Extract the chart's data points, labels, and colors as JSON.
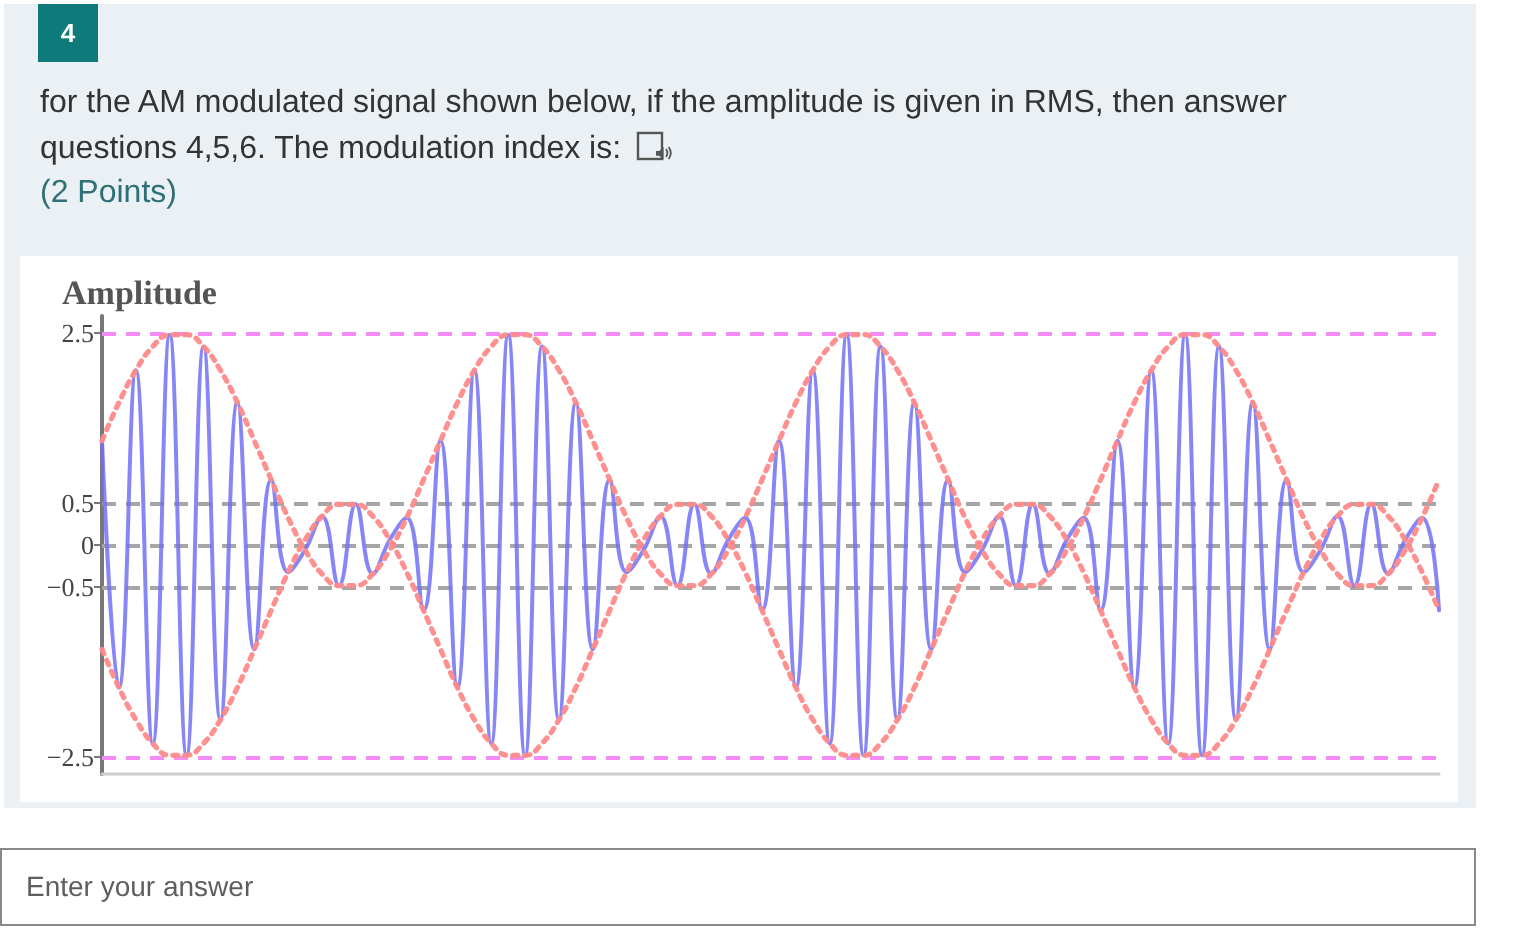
{
  "chart_data": {
    "type": "line",
    "title": "for the AM modulated signal shown below, if the amplitude is given in RMS, then answer questions 4,5,6. The modulation index is:",
    "subtitle": "(2 Points)",
    "ylabel": "Amplitude",
    "annotations": [
      "4",
      "Enter your answer"
    ],
    "categories": [
      null,
      null,
      null,
      null,
      null,
      null,
      null,
      null,
      null,
      null,
      null,
      null,
      null,
      null,
      null,
      null,
      null,
      null,
      null,
      null,
      null,
      null,
      null,
      null,
      null,
      null,
      null,
      null,
      null,
      null,
      null,
      null,
      null,
      null,
      null,
      null,
      null,
      null,
      null,
      null,
      null,
      null,
      null,
      null,
      null,
      null,
      null,
      null,
      null,
      null,
      null,
      null,
      null,
      null,
      null,
      null,
      null,
      null,
      null,
      null,
      null,
      null,
      null,
      null,
      null,
      null,
      null,
      null,
      null,
      null,
      null,
      null,
      null,
      null,
      null,
      null,
      null,
      null,
      null,
      null
    ],
    "series": [
      {
        "color": "#7171f4",
        "line_style": "solid",
        "values": [
          1.23,
          -1.68,
          2.06,
          -2.34,
          2.48,
          -2.48,
          2.34,
          -2.06,
          1.68,
          -1.23,
          0.77,
          -0.32,
          -0.06,
          0.34,
          -0.48,
          0.48,
          -0.34,
          0.06,
          0.32,
          -0.77,
          1.23,
          -1.68,
          2.06,
          -2.34,
          2.48,
          -2.48,
          2.34,
          -2.06,
          1.68,
          -1.23,
          0.77,
          -0.32,
          -0.06,
          0.34,
          -0.48,
          0.48,
          -0.34,
          0.06,
          0.32,
          -0.77,
          1.23,
          -1.68,
          2.06,
          -2.34,
          2.48,
          -2.48,
          2.34,
          -2.06,
          1.68,
          -1.23,
          0.77,
          -0.32,
          -0.06,
          0.34,
          -0.48,
          0.48,
          -0.34,
          0.06,
          0.32,
          -0.77,
          1.23,
          -1.68,
          2.06,
          -2.34,
          2.48,
          -2.48,
          2.34,
          -2.06,
          1.68,
          -1.23,
          0.77,
          -0.32,
          -0.06,
          0.34,
          -0.48,
          0.48,
          -0.34,
          0.06,
          0.32,
          -0.77
        ]
      },
      {
        "color": "#ff8a8a",
        "line_style": "dotted",
        "values": [
          1.23,
          1.68,
          2.06,
          2.34,
          2.48,
          2.48,
          2.34,
          2.06,
          1.68,
          1.23,
          0.77,
          0.32,
          -0.06,
          -0.34,
          -0.48,
          -0.48,
          -0.34,
          -0.06,
          0.32,
          0.77,
          1.23,
          1.68,
          2.06,
          2.34,
          2.48,
          2.48,
          2.34,
          2.06,
          1.68,
          1.23,
          0.77,
          0.32,
          -0.06,
          -0.34,
          -0.48,
          -0.48,
          -0.34,
          -0.06,
          0.32,
          0.77,
          1.23,
          1.68,
          2.06,
          2.34,
          2.48,
          2.48,
          2.34,
          2.06,
          1.68,
          1.23,
          0.77,
          0.32,
          -0.06,
          -0.34,
          -0.48,
          -0.48,
          -0.34,
          -0.06,
          0.32,
          0.77,
          1.23,
          1.68,
          2.06,
          2.34,
          2.48,
          2.48,
          2.34,
          2.06,
          1.68,
          1.23,
          0.77,
          0.32,
          -0.06,
          -0.34,
          -0.48,
          -0.48,
          -0.34,
          -0.06,
          0.32,
          0.77
        ]
      },
      {
        "color": "#ff8a8a",
        "line_style": "dotted",
        "values": [
          -1.23,
          -1.68,
          -2.06,
          -2.34,
          -2.48,
          -2.48,
          -2.34,
          -2.06,
          -1.68,
          -1.23,
          -0.77,
          -0.32,
          0.06,
          0.34,
          0.48,
          0.48,
          0.34,
          0.06,
          -0.32,
          -0.77,
          -1.23,
          -1.68,
          -2.06,
          -2.34,
          -2.48,
          -2.48,
          -2.34,
          -2.06,
          -1.68,
          -1.23,
          -0.77,
          -0.32,
          0.06,
          0.34,
          0.48,
          0.48,
          0.34,
          0.06,
          -0.32,
          -0.77,
          -1.23,
          -1.68,
          -2.06,
          -2.34,
          -2.48,
          -2.48,
          -2.34,
          -2.06,
          -1.68,
          -1.23,
          -0.77,
          -0.32,
          0.06,
          0.34,
          0.48,
          0.48,
          0.34,
          0.06,
          -0.32,
          -0.77,
          -1.23,
          -1.68,
          -2.06,
          -2.34,
          -2.48,
          -2.48,
          -2.34,
          -2.06,
          -1.68,
          -1.23,
          -0.77,
          -0.32,
          0.06,
          0.34,
          0.48,
          0.48,
          0.34,
          0.06,
          -0.32,
          -0.77
        ]
      }
    ],
    "ylim": [
      -2.7,
      2.7
    ],
    "yticks": [
      {
        "value": -2.5,
        "label": "−2.5"
      },
      {
        "value": -0.5,
        "label": "−0.5"
      },
      0,
      0.5,
      2.5
    ],
    "ref_lines": [
      {
        "axis": "y",
        "value": 2.5,
        "color": "#f58cf5",
        "line_style": "dashed"
      },
      {
        "axis": "y",
        "value": -2.5,
        "color": "#f58cf5",
        "line_style": "dashed"
      },
      {
        "axis": "y",
        "value": 0.5,
        "color": "#a6a6a6",
        "line_style": "dashed"
      },
      {
        "axis": "y",
        "value": 0,
        "color": "#a6a6a6",
        "line_style": "dashed"
      },
      {
        "axis": "y",
        "value": -0.5,
        "color": "#a6a6a6",
        "line_style": "dashed"
      }
    ],
    "grid": false,
    "marker": "none",
    "tick_labels": "y"
  }
}
